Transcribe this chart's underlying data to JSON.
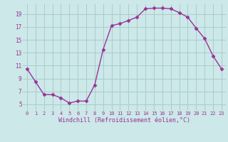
{
  "x": [
    0,
    1,
    2,
    3,
    4,
    5,
    6,
    7,
    8,
    9,
    10,
    11,
    12,
    13,
    14,
    15,
    16,
    17,
    18,
    19,
    20,
    21,
    22,
    23
  ],
  "y": [
    10.5,
    8.5,
    6.5,
    6.5,
    6.0,
    5.2,
    5.5,
    5.5,
    8.0,
    13.5,
    17.2,
    17.5,
    18.0,
    18.5,
    19.8,
    19.9,
    19.9,
    19.8,
    19.2,
    18.5,
    16.8,
    15.2,
    12.5,
    10.5
  ],
  "line_color": "#993399",
  "marker": "D",
  "marker_size": 2.5,
  "bg_color": "#cce8e8",
  "grid_color": "#aacccc",
  "xlabel": "Windchill (Refroidissement éolien,°C)",
  "xlabel_color": "#993399",
  "tick_color": "#993399",
  "ylim": [
    4.0,
    20.5
  ],
  "xlim": [
    -0.5,
    23.5
  ],
  "yticks": [
    5,
    7,
    9,
    11,
    13,
    15,
    17,
    19
  ],
  "xticks": [
    0,
    1,
    2,
    3,
    4,
    5,
    6,
    7,
    8,
    9,
    10,
    11,
    12,
    13,
    14,
    15,
    16,
    17,
    18,
    19,
    20,
    21,
    22,
    23
  ],
  "line_width": 1.0,
  "figsize": [
    3.2,
    2.0
  ],
  "dpi": 100
}
